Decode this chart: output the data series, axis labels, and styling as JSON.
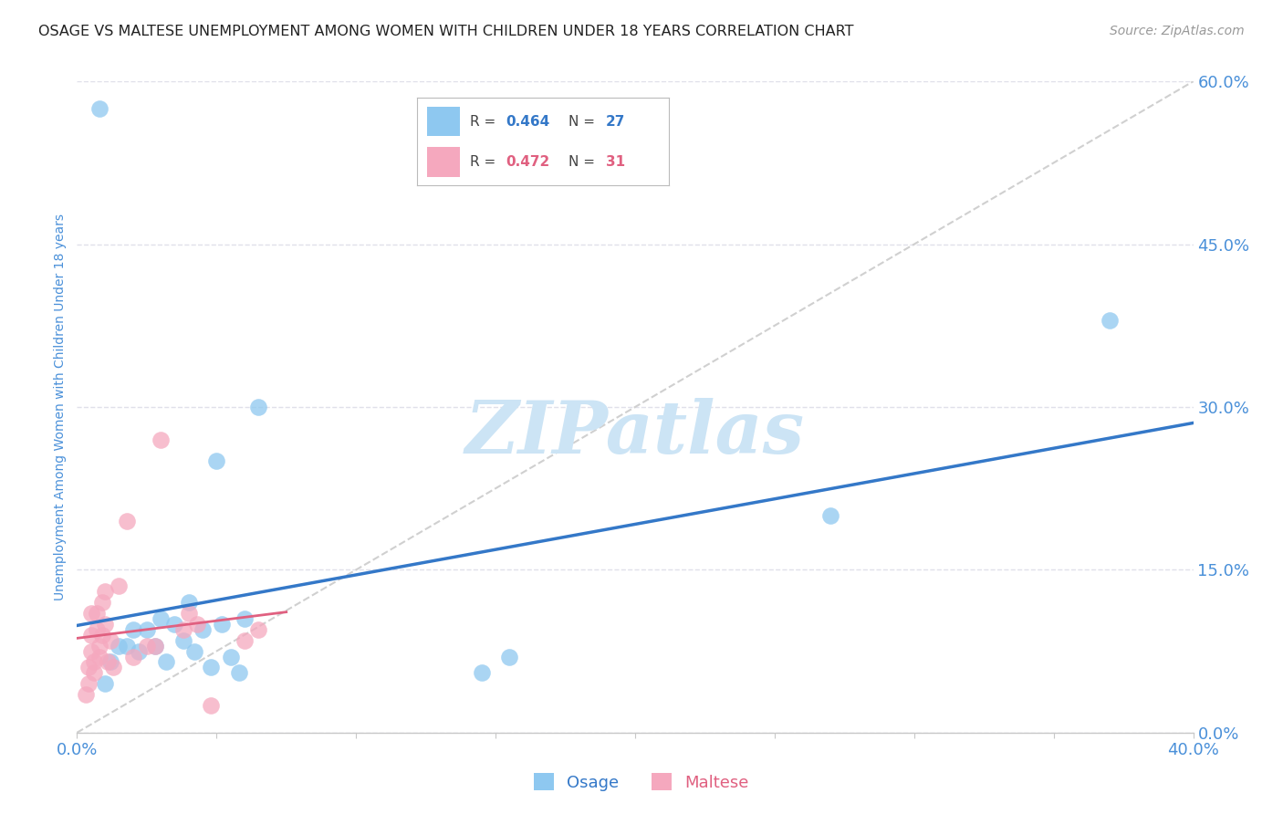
{
  "title": "OSAGE VS MALTESE UNEMPLOYMENT AMONG WOMEN WITH CHILDREN UNDER 18 YEARS CORRELATION CHART",
  "source": "Source: ZipAtlas.com",
  "ylabel": "Unemployment Among Women with Children Under 18 years",
  "xlim": [
    0.0,
    0.4
  ],
  "ylim": [
    0.0,
    0.6
  ],
  "xticks": [
    0.0,
    0.05,
    0.1,
    0.15,
    0.2,
    0.25,
    0.3,
    0.35,
    0.4
  ],
  "xtick_labels_show": {
    "0.0": "0.0%",
    "0.4": "40.0%"
  },
  "yticks_right": [
    0.0,
    0.15,
    0.3,
    0.45,
    0.6
  ],
  "ytick_labels_right": [
    "0.0%",
    "15.0%",
    "30.0%",
    "45.0%",
    "60.0%"
  ],
  "osage_color": "#8ec8f0",
  "maltese_color": "#f5a8be",
  "osage_line_color": "#3478c8",
  "maltese_line_color": "#e06080",
  "diagonal_color": "#d0d0d0",
  "osage_x": [
    0.008,
    0.01,
    0.012,
    0.015,
    0.018,
    0.02,
    0.022,
    0.025,
    0.028,
    0.03,
    0.032,
    0.035,
    0.038,
    0.04,
    0.042,
    0.045,
    0.048,
    0.05,
    0.052,
    0.055,
    0.058,
    0.06,
    0.065,
    0.145,
    0.155,
    0.27,
    0.37
  ],
  "osage_y": [
    0.575,
    0.045,
    0.065,
    0.08,
    0.08,
    0.095,
    0.075,
    0.095,
    0.08,
    0.105,
    0.065,
    0.1,
    0.085,
    0.12,
    0.075,
    0.095,
    0.06,
    0.25,
    0.1,
    0.07,
    0.055,
    0.105,
    0.3,
    0.055,
    0.07,
    0.2,
    0.38
  ],
  "maltese_x": [
    0.003,
    0.004,
    0.004,
    0.005,
    0.005,
    0.005,
    0.006,
    0.006,
    0.007,
    0.007,
    0.008,
    0.008,
    0.009,
    0.009,
    0.01,
    0.01,
    0.011,
    0.012,
    0.013,
    0.015,
    0.018,
    0.02,
    0.025,
    0.028,
    0.03,
    0.038,
    0.04,
    0.043,
    0.048,
    0.06,
    0.065
  ],
  "maltese_y": [
    0.035,
    0.06,
    0.045,
    0.075,
    0.09,
    0.11,
    0.055,
    0.065,
    0.095,
    0.11,
    0.07,
    0.08,
    0.12,
    0.09,
    0.1,
    0.13,
    0.065,
    0.085,
    0.06,
    0.135,
    0.195,
    0.07,
    0.08,
    0.08,
    0.27,
    0.095,
    0.11,
    0.1,
    0.025,
    0.085,
    0.095
  ],
  "background_color": "#ffffff",
  "grid_color": "#e0e0ea",
  "title_color": "#222222",
  "axis_label_color": "#4a90d9",
  "tick_label_color": "#4a90d9",
  "watermark_text": "ZIPatlas",
  "watermark_color": "#cce4f5",
  "legend_box_color": "#cccccc"
}
